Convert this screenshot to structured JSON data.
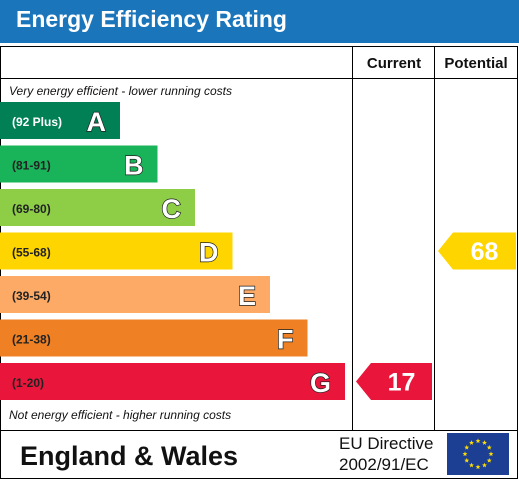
{
  "header": {
    "title": "Energy Efficiency Rating"
  },
  "chart_data": {
    "type": "bar",
    "columns": [
      "Current",
      "Potential"
    ],
    "top_note": "Very energy efficient - lower running costs",
    "bottom_note": "Not energy efficient - higher running costs",
    "bands": [
      {
        "letter": "A",
        "range": "(92 Plus)",
        "color": "#008054"
      },
      {
        "letter": "B",
        "range": "(81-91)",
        "color": "#19b459"
      },
      {
        "letter": "C",
        "range": "(69-80)",
        "color": "#8dce46"
      },
      {
        "letter": "D",
        "range": "(55-68)",
        "color": "#ffd500"
      },
      {
        "letter": "E",
        "range": "(39-54)",
        "color": "#fcaa65"
      },
      {
        "letter": "F",
        "range": "(21-38)",
        "color": "#ef8023"
      },
      {
        "letter": "G",
        "range": "(1-20)",
        "color": "#e9153b"
      }
    ],
    "current": {
      "value": 17,
      "band": "G",
      "color": "#e9153b"
    },
    "potential": {
      "value": 68,
      "band": "D",
      "color": "#ffd500"
    }
  },
  "footer": {
    "region": "England & Wales",
    "directive_line1": "EU Directive",
    "directive_line2": "2002/91/EC"
  },
  "icons": {
    "flag": "eu-flag-icon"
  }
}
